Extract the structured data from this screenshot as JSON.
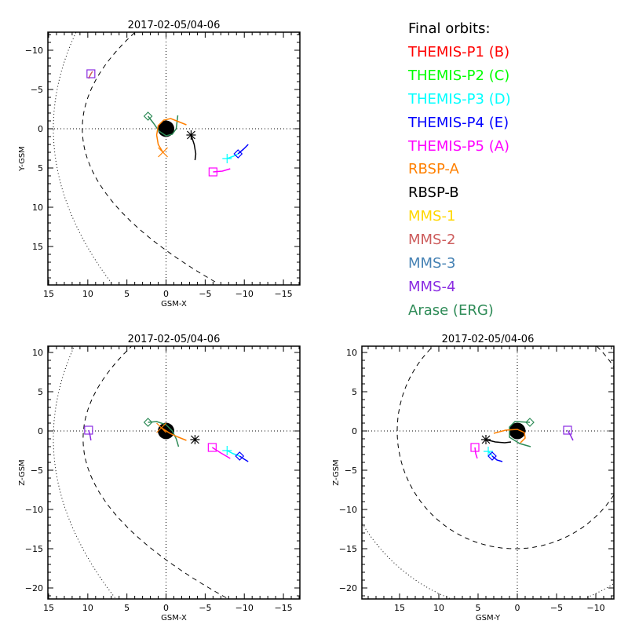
{
  "legend": {
    "title": "Final orbits:",
    "items": [
      {
        "label": "THEMIS-P1 (B)",
        "color": "#ff0000"
      },
      {
        "label": "THEMIS-P2 (C)",
        "color": "#00ff00"
      },
      {
        "label": "THEMIS-P3 (D)",
        "color": "#00ffff"
      },
      {
        "label": "THEMIS-P4 (E)",
        "color": "#0000ff"
      },
      {
        "label": "THEMIS-P5 (A)",
        "color": "#ff00ff"
      },
      {
        "label": "RBSP-A",
        "color": "#ff8000"
      },
      {
        "label": "RBSP-B",
        "color": "#000000"
      },
      {
        "label": "MMS-1",
        "color": "#ffd700"
      },
      {
        "label": "MMS-2",
        "color": "#cd5c5c"
      },
      {
        "label": "MMS-3",
        "color": "#4682b4"
      },
      {
        "label": "MMS-4",
        "color": "#8a2be2"
      },
      {
        "label": "Arase (ERG)",
        "color": "#2e8b57"
      }
    ]
  },
  "chart_data": [
    {
      "type": "scatter",
      "title": "2017-02-05/04-06",
      "xlabel": "GSM-X",
      "ylabel": "Y-GSM",
      "xlim": [
        15.1,
        -17.1
      ],
      "ylim": [
        19.9,
        -12.3
      ],
      "xticks": [
        15,
        10,
        5,
        0,
        -5,
        -10,
        -15
      ],
      "yticks": [
        -10,
        -5,
        0,
        5,
        10,
        15
      ],
      "xtick_labels": [
        "15",
        "10",
        "5",
        "0",
        "−5",
        "−10",
        "−15"
      ],
      "ytick_labels": [
        "−10",
        "−5",
        "0",
        "5",
        "10",
        "15"
      ],
      "boundaries": {
        "magnetopause": {
          "kind": "parabola",
          "nose": 10.7,
          "k": 0.0446,
          "offset": 0
        },
        "bow_shock": {
          "kind": "parabola",
          "nose": 14.4,
          "k": 0.0192,
          "offset": 0
        }
      },
      "series": [
        {
          "name": "Arase (ERG)",
          "color": "#2e8b57",
          "marker": "diamond",
          "points": [
            [
              2.3,
              -1.6
            ],
            [
              1.6,
              -0.7
            ],
            [
              0.9,
              0.3
            ],
            [
              0,
              0.9
            ],
            [
              -0.8,
              0.7
            ],
            [
              -1.3,
              0
            ],
            [
              -1.5,
              -1.7
            ]
          ]
        },
        {
          "name": "RBSP-A",
          "color": "#ff8000",
          "marker": "x",
          "points": [
            [
              0.4,
              3.0
            ],
            [
              1.0,
              2.0
            ],
            [
              1.2,
              0.8
            ],
            [
              1.0,
              -0.4
            ],
            [
              0.3,
              -1.1
            ],
            [
              -0.6,
              -1.3
            ],
            [
              -1.6,
              -0.9
            ],
            [
              -2.6,
              -0.5
            ]
          ]
        },
        {
          "name": "RBSP-B",
          "color": "#000000",
          "marker": "asterisk",
          "points": [
            [
              -3.2,
              0.8
            ],
            [
              -3.6,
              2.0
            ],
            [
              -3.8,
              3.2
            ],
            [
              -3.7,
              4.0
            ]
          ]
        },
        {
          "name": "THEMIS-P3 (D)",
          "color": "#00ffff",
          "marker": "plus",
          "points": [
            [
              -7.8,
              3.8
            ],
            [
              -8.6,
              3.5
            ],
            [
              -9.2,
              3.2
            ]
          ]
        },
        {
          "name": "THEMIS-P4 (E)",
          "color": "#0000ff",
          "marker": "diamond",
          "points": [
            [
              -9.2,
              3.2
            ],
            [
              -9.9,
              2.6
            ],
            [
              -10.5,
              2.0
            ]
          ]
        },
        {
          "name": "THEMIS-P5 (A)",
          "color": "#ff00ff",
          "marker": "square",
          "points": [
            [
              -6.0,
              5.5
            ],
            [
              -7.2,
              5.4
            ],
            [
              -8.2,
              5.1
            ]
          ]
        },
        {
          "name": "MMS-2",
          "color": "#cd5c5c",
          "marker": "none",
          "points": [
            [
              9.9,
              -6.4
            ],
            [
              9.6,
              -7.0
            ],
            [
              9.4,
              -7.3
            ]
          ]
        },
        {
          "name": "MMS-4",
          "color": "#8a2be2",
          "marker": "square",
          "points": [
            [
              9.6,
              -7.0
            ]
          ]
        }
      ]
    },
    {
      "type": "scatter",
      "title": "2017-02-05/04-06",
      "xlabel": "GSM-X",
      "ylabel": "Z-GSM",
      "xlim": [
        15.1,
        -17.1
      ],
      "ylim": [
        -21.4,
        10.8
      ],
      "xticks": [
        15,
        10,
        5,
        0,
        -5,
        -10,
        -15
      ],
      "yticks": [
        10,
        5,
        0,
        -5,
        -10,
        -15,
        -20
      ],
      "xtick_labels": [
        "15",
        "10",
        "5",
        "0",
        "−5",
        "−10",
        "−15"
      ],
      "ytick_labels": [
        "10",
        "5",
        "0",
        "−5",
        "−10",
        "−15",
        "−20"
      ],
      "boundaries": {
        "magnetopause": {
          "kind": "parabola",
          "nose": 10.6,
          "k": 0.0446,
          "offset": -1
        },
        "bow_shock": {
          "kind": "parabola",
          "nose": 14.4,
          "k": 0.0192,
          "offset": -1
        }
      },
      "series": [
        {
          "name": "Arase (ERG)",
          "color": "#2e8b57",
          "marker": "diamond",
          "points": [
            [
              2.3,
              1.1
            ],
            [
              1.2,
              1.2
            ],
            [
              0,
              0.8
            ],
            [
              -0.8,
              0
            ],
            [
              -1.3,
              -1.0
            ],
            [
              -1.6,
              -2.0
            ]
          ]
        },
        {
          "name": "RBSP-A",
          "color": "#ff8000",
          "marker": "x",
          "points": [
            [
              0.6,
              0.4
            ],
            [
              -0.5,
              -0.3
            ],
            [
              -1.6,
              -0.8
            ],
            [
              -2.6,
              -1.2
            ]
          ]
        },
        {
          "name": "RBSP-B",
          "color": "#000000",
          "marker": "asterisk",
          "points": [
            [
              -3.7,
              -1.1
            ]
          ]
        },
        {
          "name": "THEMIS-P5 (A)",
          "color": "#ff00ff",
          "marker": "square",
          "points": [
            [
              -5.9,
              -2.1
            ],
            [
              -7.0,
              -2.8
            ],
            [
              -8.2,
              -3.5
            ]
          ]
        },
        {
          "name": "THEMIS-P3 (D)",
          "color": "#00ffff",
          "marker": "plus",
          "points": [
            [
              -7.8,
              -2.5
            ],
            [
              -8.6,
              -2.9
            ],
            [
              -9.4,
              -3.2
            ]
          ]
        },
        {
          "name": "THEMIS-P4 (E)",
          "color": "#0000ff",
          "marker": "diamond",
          "points": [
            [
              -9.4,
              -3.2
            ],
            [
              -10.0,
              -3.6
            ],
            [
              -10.5,
              -3.9
            ]
          ]
        },
        {
          "name": "MMS-4",
          "color": "#8a2be2",
          "marker": "square",
          "points": [
            [
              9.9,
              0.1
            ],
            [
              9.7,
              -0.6
            ],
            [
              9.6,
              -1.2
            ]
          ]
        }
      ]
    },
    {
      "type": "scatter",
      "title": "2017-02-05/04-06",
      "xlabel": "GSM-Y",
      "ylabel": "Z-GSM",
      "xlim": [
        19.8,
        -12.3
      ],
      "ylim": [
        -21.4,
        10.8
      ],
      "xticks": [
        15,
        10,
        5,
        0,
        -5,
        -10
      ],
      "yticks": [
        10,
        5,
        0,
        -5,
        -10,
        -15,
        -20
      ],
      "xtick_labels": [
        "15",
        "10",
        "5",
        "0",
        "−5",
        "−10"
      ],
      "ytick_labels": [
        "10",
        "5",
        "0",
        "−5",
        "−10",
        "−15",
        "−20"
      ],
      "boundaries": {
        "magnetopause": {
          "kind": "circle",
          "r": 15,
          "cx": 0.3,
          "cy": 0
        },
        "bow_shock": {
          "kind": "circle",
          "r": 23,
          "cx": 0,
          "cy": 0
        }
      },
      "series": [
        {
          "name": "Arase (ERG)",
          "color": "#2e8b57",
          "marker": "diamond",
          "points": [
            [
              -1.6,
              1.1
            ],
            [
              0.3,
              1.2
            ],
            [
              1.0,
              0.5
            ],
            [
              1.0,
              -0.8
            ],
            [
              -0.3,
              -1.6
            ],
            [
              -1.7,
              -2.0
            ]
          ]
        },
        {
          "name": "RBSP-A",
          "color": "#ff8000",
          "marker": "none",
          "points": [
            [
              3.0,
              -0.3
            ],
            [
              1.5,
              0.1
            ],
            [
              0,
              0.2
            ],
            [
              -0.9,
              -0.2
            ],
            [
              -1.0,
              -0.9
            ],
            [
              -0.4,
              -1.5
            ]
          ]
        },
        {
          "name": "RBSP-B",
          "color": "#000000",
          "marker": "asterisk",
          "points": [
            [
              4.0,
              -1.1
            ],
            [
              2.8,
              -1.4
            ],
            [
              1.6,
              -1.5
            ],
            [
              0.8,
              -1.4
            ]
          ]
        },
        {
          "name": "THEMIS-P5 (A)",
          "color": "#ff00ff",
          "marker": "square",
          "points": [
            [
              5.4,
              -2.1
            ],
            [
              5.3,
              -2.9
            ],
            [
              5.1,
              -3.5
            ]
          ]
        },
        {
          "name": "THEMIS-P3 (D)",
          "color": "#00ffff",
          "marker": "plus",
          "points": [
            [
              3.7,
              -2.6
            ],
            [
              3.4,
              -2.9
            ],
            [
              3.2,
              -3.2
            ]
          ]
        },
        {
          "name": "THEMIS-P4 (E)",
          "color": "#0000ff",
          "marker": "diamond",
          "points": [
            [
              3.2,
              -3.2
            ],
            [
              2.6,
              -3.7
            ],
            [
              1.9,
              -3.9
            ]
          ]
        },
        {
          "name": "MMS-4",
          "color": "#8a2be2",
          "marker": "square",
          "points": [
            [
              -6.4,
              0.1
            ],
            [
              -6.8,
              -0.6
            ],
            [
              -7.1,
              -1.2
            ]
          ]
        }
      ]
    }
  ]
}
